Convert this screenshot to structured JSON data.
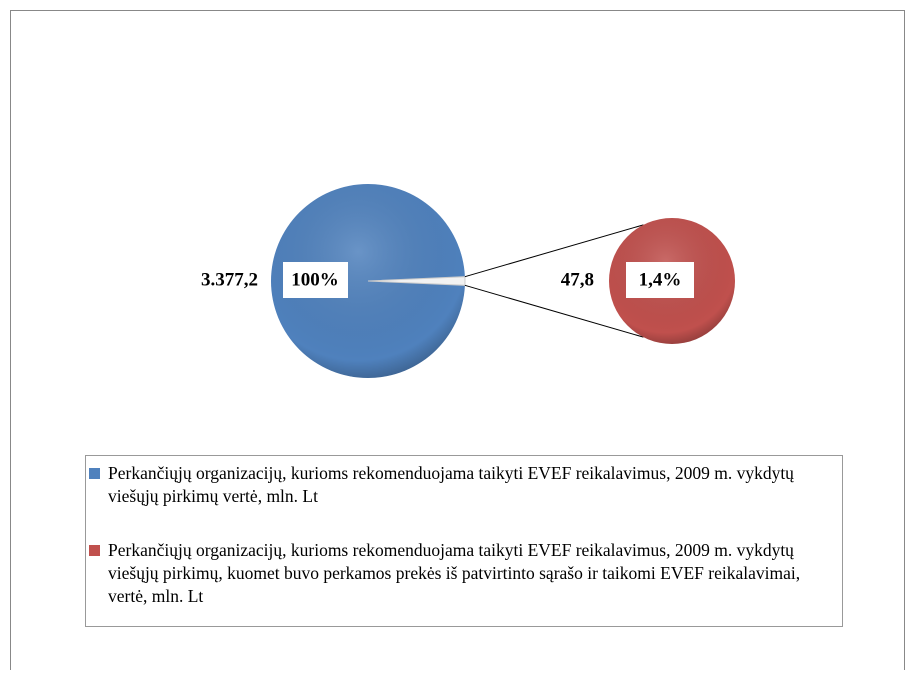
{
  "chart_data": {
    "type": "pie",
    "series": [
      {
        "name": "Perkančiųjų organizacijų, kurioms rekomenduojama taikyti EVEF reikalavimus, 2009 m. vykdytų viešųjų pirkimų vertė, mln. Lt",
        "color": "#4f81bd",
        "values": [
          3377.2
        ],
        "value_labels": [
          "3.377,2"
        ],
        "percents": [
          100
        ],
        "percent_labels": [
          "100%"
        ]
      },
      {
        "name": "Perkančiųjų organizacijų, kurioms rekomenduojama taikyti EVEF reikalavimus, 2009 m. vykdytų viešųjų pirkimų, kuomet buvo perkamos prekės iš patvirtinto sąrašo ir taikomi EVEF reikalavimai, vertė, mln. Lt",
        "color": "#c0504d",
        "values": [
          47.8
        ],
        "value_labels": [
          "47,8"
        ],
        "percents": [
          1.4
        ],
        "percent_labels": [
          "1,4%"
        ]
      }
    ],
    "legend": "bottom"
  }
}
